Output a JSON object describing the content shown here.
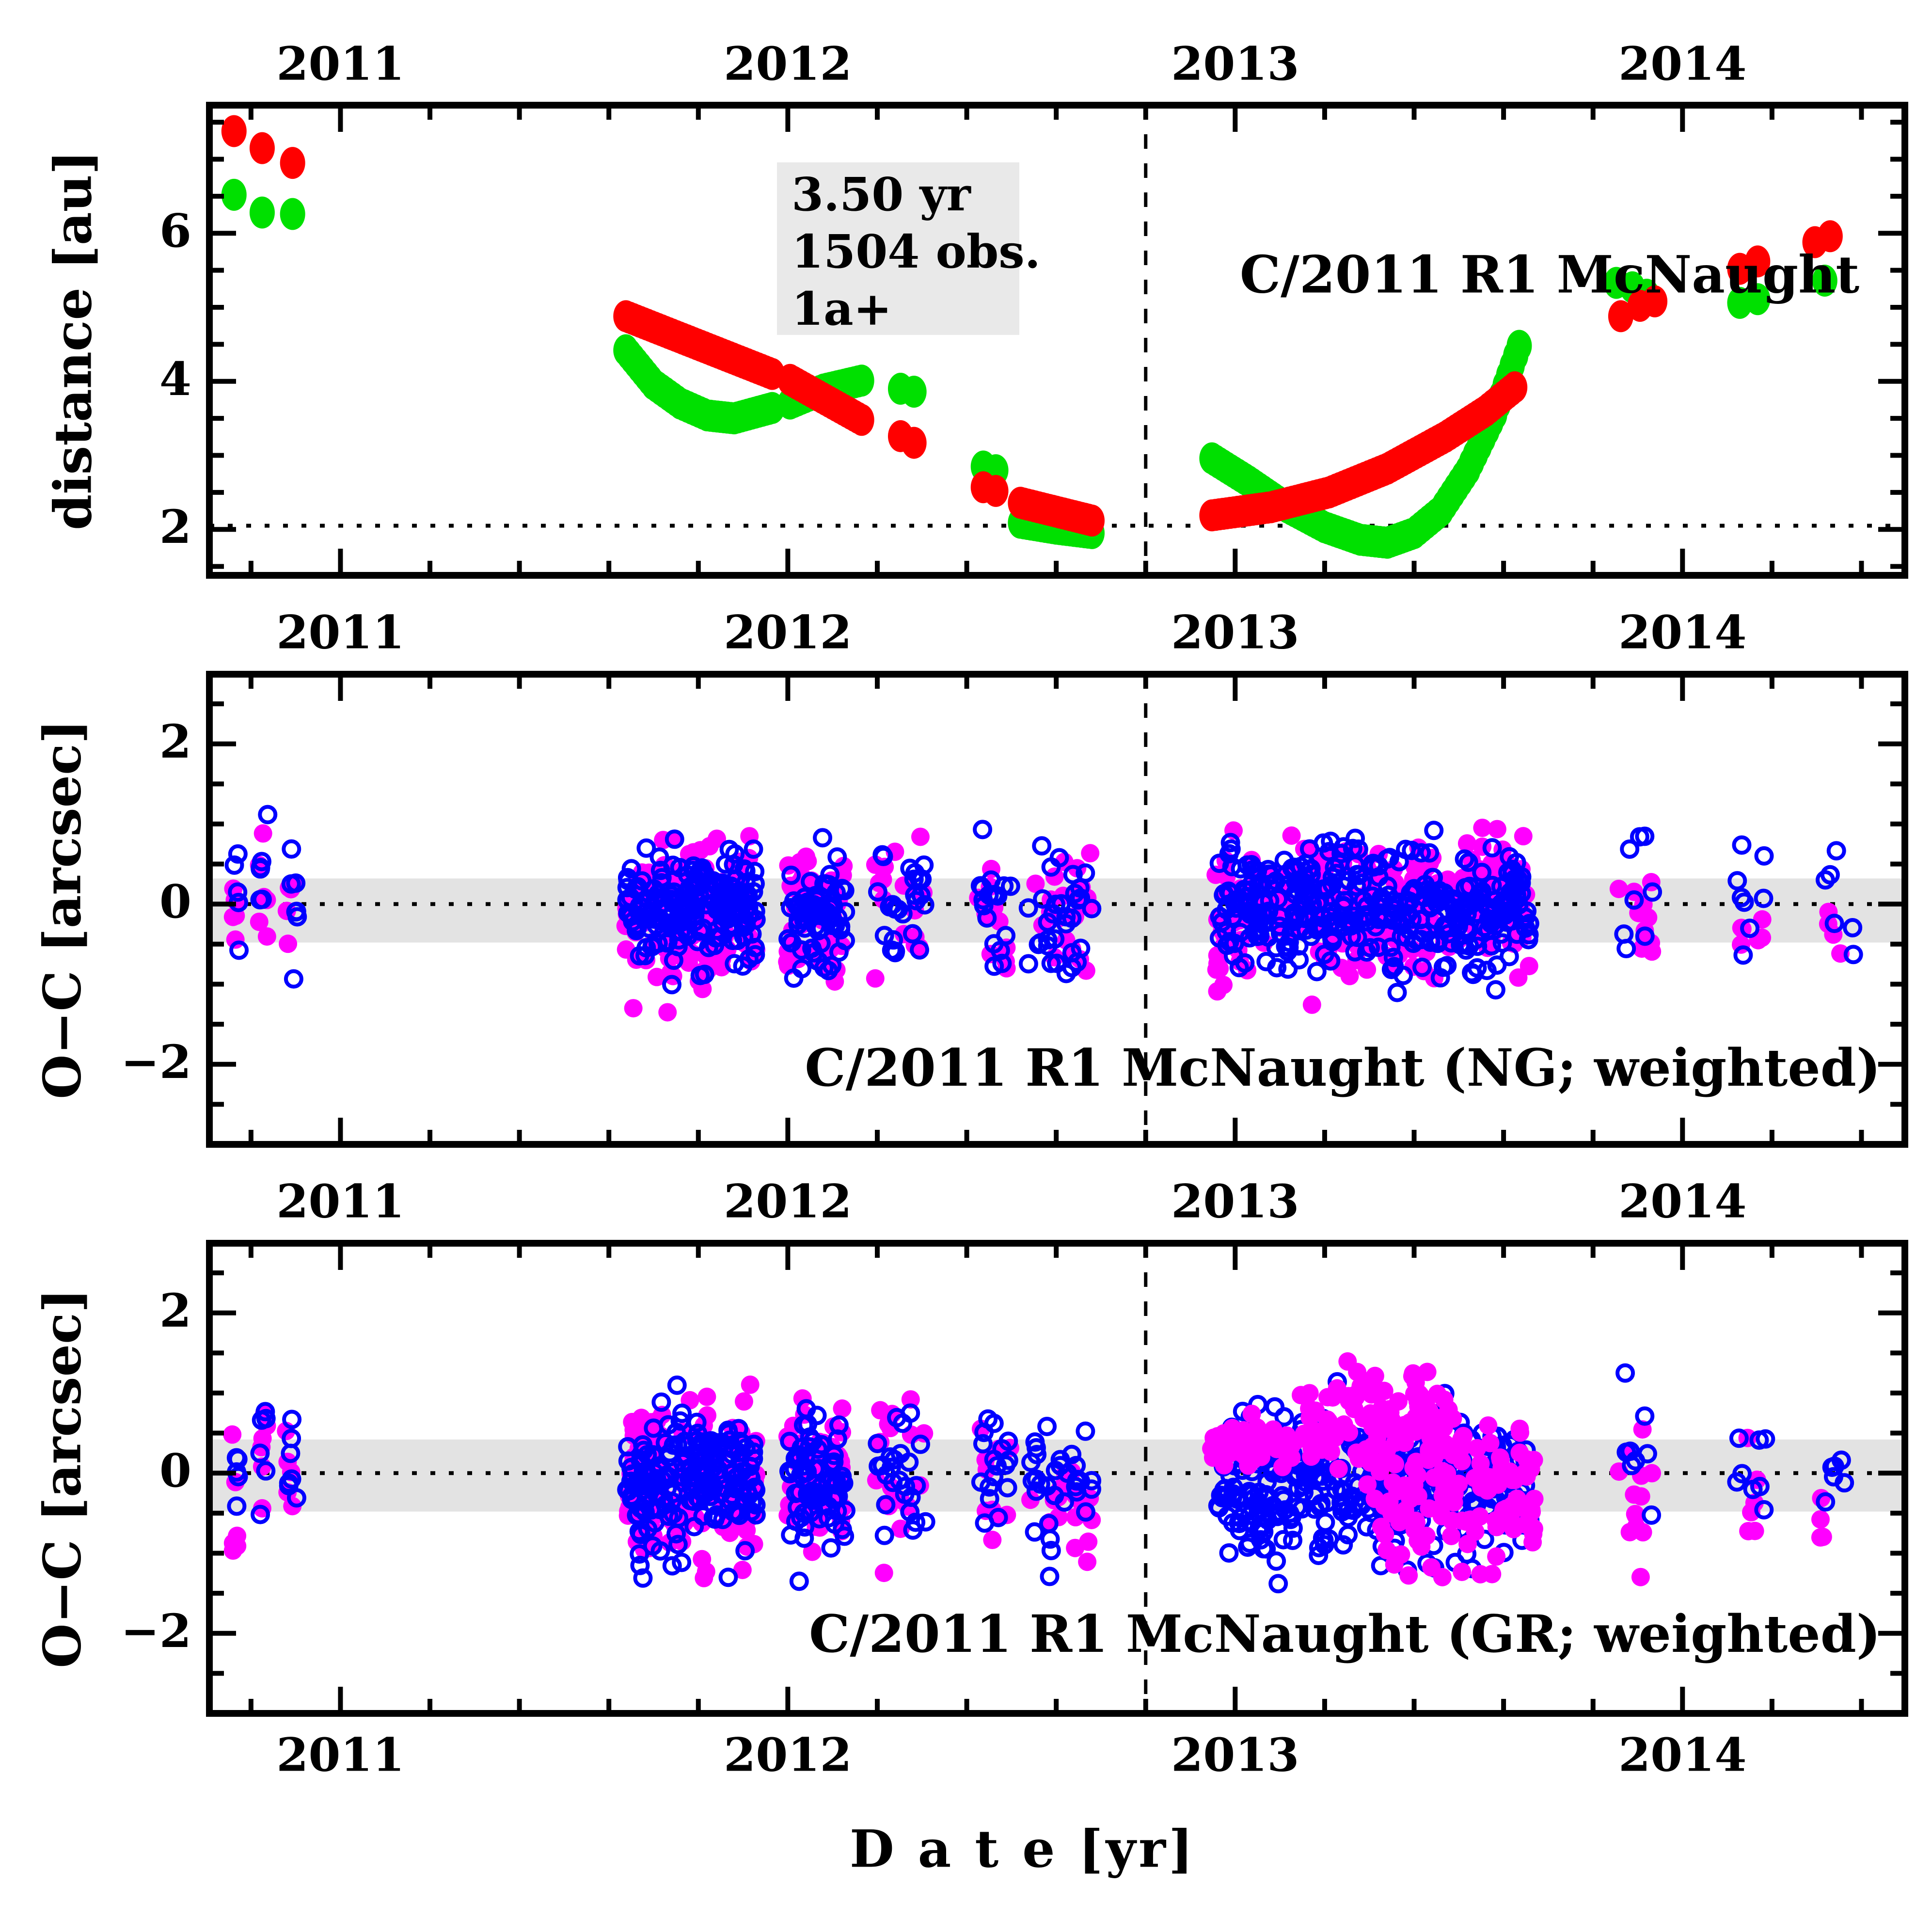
{
  "figure": {
    "background": "#ffffff",
    "frame_color": "#000000",
    "band_color": "#e3e3e3",
    "stats_box_bg": "#e9e9e9",
    "colors": {
      "red_series": "#ff0000",
      "green_series": "#00e000",
      "magenta_filled": "#ff00ff",
      "blue_open": "#0000ff"
    }
  },
  "chart_data": {
    "type": "scatter",
    "x": {
      "title": "D a t e [yr]",
      "range": [
        2010.707,
        2014.497
      ],
      "major_ticks": [
        2011,
        2012,
        2013,
        2014
      ],
      "tick_labels": [
        "2011",
        "2012",
        "2013",
        "2014"
      ],
      "minor_step": 0.2,
      "vline": 2012.8
    },
    "panels": {
      "distance": {
        "ylabel": "distance [au]",
        "title": "C/2011 R1 McNaught",
        "stats_box": {
          "line1": "3.50 yr",
          "line2": "1504 obs.",
          "line3": "1a+"
        },
        "yrange": [
          1.38,
          7.73
        ],
        "ytick_values": [
          2,
          4,
          6
        ],
        "ytick_labels": [
          "2",
          "4",
          "6"
        ],
        "minor_step": 0.5,
        "hline": 2.05,
        "series": [
          {
            "name": "green-curve",
            "color": "#00e000",
            "segments": [
              {
                "mode": "dots",
                "pts": [
                  [
                    2010.762,
                    6.52
                  ],
                  [
                    2010.825,
                    6.28
                  ],
                  [
                    2010.893,
                    6.26
                  ]
                ]
              },
              {
                "mode": "train",
                "step": 0.008,
                "pts": [
                  [
                    2011.638,
                    4.42
                  ],
                  [
                    2011.7,
                    3.96
                  ],
                  [
                    2011.76,
                    3.7
                  ],
                  [
                    2011.82,
                    3.54
                  ],
                  [
                    2011.88,
                    3.5
                  ],
                  [
                    2011.965,
                    3.64
                  ]
                ]
              },
              {
                "mode": "train",
                "step": 0.008,
                "pts": [
                  [
                    2012.005,
                    3.7
                  ],
                  [
                    2012.08,
                    3.89
                  ],
                  [
                    2012.165,
                    4.01
                  ]
                ]
              },
              {
                "mode": "dots",
                "pts": [
                  [
                    2012.252,
                    3.9
                  ],
                  [
                    2012.282,
                    3.86
                  ]
                ]
              },
              {
                "mode": "dots",
                "pts": [
                  [
                    2012.437,
                    2.85
                  ],
                  [
                    2012.465,
                    2.8
                  ]
                ]
              },
              {
                "mode": "train",
                "step": 0.008,
                "pts": [
                  [
                    2012.52,
                    2.09
                  ],
                  [
                    2012.6,
                    2.01
                  ],
                  [
                    2012.68,
                    1.95
                  ]
                ]
              },
              {
                "mode": "train",
                "step": 0.008,
                "pts": [
                  [
                    2012.948,
                    2.96
                  ],
                  [
                    2013.03,
                    2.65
                  ],
                  [
                    2013.11,
                    2.32
                  ],
                  [
                    2013.2,
                    2.03
                  ],
                  [
                    2013.28,
                    1.86
                  ],
                  [
                    2013.34,
                    1.82
                  ],
                  [
                    2013.4,
                    1.95
                  ],
                  [
                    2013.46,
                    2.25
                  ],
                  [
                    2013.52,
                    2.8
                  ],
                  [
                    2013.58,
                    3.55
                  ],
                  [
                    2013.635,
                    4.48
                  ]
                ]
              },
              {
                "mode": "dots",
                "pts": [
                  [
                    2013.852,
                    5.33
                  ],
                  [
                    2013.888,
                    5.27
                  ],
                  [
                    2013.92,
                    5.17
                  ]
                ]
              },
              {
                "mode": "dots",
                "pts": [
                  [
                    2014.128,
                    5.06
                  ],
                  [
                    2014.168,
                    5.11
                  ]
                ]
              },
              {
                "mode": "dots",
                "pts": [
                  [
                    2014.318,
                    5.36
                  ]
                ]
              }
            ]
          },
          {
            "name": "red-curve",
            "color": "#ff0000",
            "segments": [
              {
                "mode": "dots",
                "pts": [
                  [
                    2010.762,
                    7.38
                  ],
                  [
                    2010.825,
                    7.15
                  ],
                  [
                    2010.893,
                    6.95
                  ]
                ]
              },
              {
                "mode": "train",
                "step": 0.008,
                "pts": [
                  [
                    2011.638,
                    4.88
                  ],
                  [
                    2011.965,
                    4.1
                  ]
                ]
              },
              {
                "mode": "train",
                "step": 0.008,
                "pts": [
                  [
                    2012.005,
                    4.02
                  ],
                  [
                    2012.165,
                    3.48
                  ]
                ]
              },
              {
                "mode": "dots",
                "pts": [
                  [
                    2012.252,
                    3.26
                  ],
                  [
                    2012.282,
                    3.17
                  ]
                ]
              },
              {
                "mode": "dots",
                "pts": [
                  [
                    2012.437,
                    2.57
                  ],
                  [
                    2012.465,
                    2.52
                  ]
                ]
              },
              {
                "mode": "train",
                "step": 0.008,
                "pts": [
                  [
                    2012.52,
                    2.36
                  ],
                  [
                    2012.68,
                    2.12
                  ]
                ]
              },
              {
                "mode": "train",
                "step": 0.008,
                "pts": [
                  [
                    2012.948,
                    2.19
                  ],
                  [
                    2013.08,
                    2.3
                  ],
                  [
                    2013.21,
                    2.5
                  ],
                  [
                    2013.34,
                    2.82
                  ],
                  [
                    2013.47,
                    3.25
                  ],
                  [
                    2013.56,
                    3.6
                  ],
                  [
                    2013.625,
                    3.92
                  ]
                ]
              },
              {
                "mode": "dots",
                "pts": [
                  [
                    2013.862,
                    4.88
                  ],
                  [
                    2013.905,
                    5.02
                  ],
                  [
                    2013.938,
                    5.08
                  ]
                ]
              },
              {
                "mode": "dots",
                "pts": [
                  [
                    2014.128,
                    5.52
                  ],
                  [
                    2014.168,
                    5.62
                  ]
                ]
              },
              {
                "mode": "dots",
                "pts": [
                  [
                    2014.296,
                    5.88
                  ],
                  [
                    2014.33,
                    5.96
                  ]
                ]
              }
            ]
          }
        ]
      },
      "ng": {
        "label": "C/2011 R1 McNaught (NG; weighted)",
        "ylabel": "O−C [arcsec]",
        "yrange": [
          -3.0,
          2.87
        ],
        "ytick_values": [
          -2,
          0,
          2
        ],
        "ytick_labels": [
          "−2",
          "0",
          "2"
        ],
        "minor_step": 0.5,
        "hline": 0,
        "band": [
          -0.48,
          0.32
        ],
        "seed": 20117,
        "marker_colors": {
          "filled": "#ff00ff",
          "open": "#0000ff"
        },
        "clusters": [
          {
            "c": "m",
            "x0": 2010.757,
            "x1": 2010.772,
            "n": 6,
            "mu": -0.25,
            "sig": 0.42
          },
          {
            "c": "b",
            "x0": 2010.758,
            "x1": 2010.775,
            "n": 5,
            "mu": 0.05,
            "sig": 0.3
          },
          {
            "c": "m",
            "x0": 2010.818,
            "x1": 2010.836,
            "n": 6,
            "mu": 0.32,
            "sig": 0.3
          },
          {
            "c": "b",
            "x0": 2010.82,
            "x1": 2010.838,
            "n": 6,
            "mu": 0.28,
            "sig": 0.38
          },
          {
            "c": "m",
            "x0": 2010.878,
            "x1": 2010.896,
            "n": 5,
            "mu": 0.05,
            "sig": 0.28
          },
          {
            "c": "b",
            "x0": 2010.882,
            "x1": 2010.908,
            "n": 7,
            "mu": -0.02,
            "sig": 0.4
          },
          {
            "c": "m",
            "x0": 2011.637,
            "x1": 2011.93,
            "n": 145,
            "mu": -0.1,
            "sig": 0.45
          },
          {
            "c": "b",
            "x0": 2011.64,
            "x1": 2011.93,
            "n": 190,
            "mu": -0.03,
            "sig": 0.36
          },
          {
            "c": "m",
            "x0": 2011.995,
            "x1": 2012.125,
            "n": 55,
            "mu": -0.12,
            "sig": 0.42
          },
          {
            "c": "b",
            "x0": 2012.0,
            "x1": 2012.13,
            "n": 72,
            "mu": -0.12,
            "sig": 0.36
          },
          {
            "c": "m",
            "x0": 2012.195,
            "x1": 2012.31,
            "n": 16,
            "mu": 0.05,
            "sig": 0.45
          },
          {
            "c": "b",
            "x0": 2012.2,
            "x1": 2012.31,
            "n": 25,
            "mu": -0.12,
            "sig": 0.38
          },
          {
            "c": "m",
            "x0": 2012.425,
            "x1": 2012.5,
            "n": 11,
            "mu": -0.15,
            "sig": 0.4
          },
          {
            "c": "b",
            "x0": 2012.43,
            "x1": 2012.5,
            "n": 17,
            "mu": 0.05,
            "sig": 0.38
          },
          {
            "c": "m",
            "x0": 2012.52,
            "x1": 2012.68,
            "n": 20,
            "mu": -0.1,
            "sig": 0.4
          },
          {
            "c": "b",
            "x0": 2012.53,
            "x1": 2012.68,
            "n": 32,
            "mu": -0.08,
            "sig": 0.36
          },
          {
            "c": "m",
            "x0": 2012.945,
            "x1": 2013.66,
            "n": 250,
            "mu": -0.05,
            "sig": 0.44
          },
          {
            "c": "b",
            "x0": 2012.96,
            "x1": 2013.66,
            "n": 360,
            "mu": -0.04,
            "sig": 0.37
          },
          {
            "c": "m",
            "x0": 2013.857,
            "x1": 2013.94,
            "n": 13,
            "mu": -0.08,
            "sig": 0.5
          },
          {
            "c": "b",
            "x0": 2013.862,
            "x1": 2013.94,
            "n": 8,
            "mu": 0.25,
            "sig": 0.4
          },
          {
            "c": "m",
            "x0": 2014.115,
            "x1": 2014.185,
            "n": 6,
            "mu": -0.3,
            "sig": 0.28
          },
          {
            "c": "b",
            "x0": 2014.12,
            "x1": 2014.19,
            "n": 8,
            "mu": -0.02,
            "sig": 0.35
          },
          {
            "c": "m",
            "x0": 2014.3,
            "x1": 2014.355,
            "n": 4,
            "mu": -0.12,
            "sig": 0.3
          },
          {
            "c": "b",
            "x0": 2014.315,
            "x1": 2014.385,
            "n": 6,
            "mu": 0.02,
            "sig": 0.4
          }
        ]
      },
      "gr": {
        "label": "C/2011 R1 McNaught (GR; weighted)",
        "ylabel": "O−C [arcsec]",
        "yrange": [
          -3.0,
          2.87
        ],
        "ytick_values": [
          -2,
          0,
          2
        ],
        "ytick_labels": [
          "−2",
          "0",
          "2"
        ],
        "minor_step": 0.5,
        "hline": 0,
        "band": [
          -0.48,
          0.42
        ],
        "seed": 20118,
        "marker_colors": {
          "filled": "#ff00ff",
          "open": "#0000ff"
        },
        "clusters": [
          {
            "c": "m",
            "x0": 2010.757,
            "x1": 2010.772,
            "n": 6,
            "mu": -0.35,
            "sig": 0.45
          },
          {
            "c": "b",
            "x0": 2010.758,
            "x1": 2010.775,
            "n": 5,
            "mu": 0.1,
            "sig": 0.32
          },
          {
            "c": "m",
            "x0": 2010.818,
            "x1": 2010.836,
            "n": 6,
            "mu": 0.3,
            "sig": 0.32
          },
          {
            "c": "b",
            "x0": 2010.82,
            "x1": 2010.838,
            "n": 6,
            "mu": 0.3,
            "sig": 0.4
          },
          {
            "c": "m",
            "x0": 2010.878,
            "x1": 2010.896,
            "n": 5,
            "mu": 0.05,
            "sig": 0.3
          },
          {
            "c": "b",
            "x0": 2010.882,
            "x1": 2010.908,
            "n": 7,
            "mu": -0.05,
            "sig": 0.42
          },
          {
            "c": "m",
            "x0": 2011.637,
            "x1": 2011.93,
            "n": 145,
            "mu": -0.12,
            "sig": 0.5
          },
          {
            "c": "b",
            "x0": 2011.64,
            "x1": 2011.93,
            "n": 190,
            "mu": -0.05,
            "sig": 0.42
          },
          {
            "c": "m",
            "x0": 2011.995,
            "x1": 2012.125,
            "n": 55,
            "mu": -0.18,
            "sig": 0.48
          },
          {
            "c": "b",
            "x0": 2012.0,
            "x1": 2012.13,
            "n": 72,
            "mu": -0.15,
            "sig": 0.4
          },
          {
            "c": "m",
            "x0": 2012.195,
            "x1": 2012.31,
            "n": 16,
            "mu": 0.05,
            "sig": 0.5
          },
          {
            "c": "b",
            "x0": 2012.2,
            "x1": 2012.31,
            "n": 25,
            "mu": -0.1,
            "sig": 0.42
          },
          {
            "c": "m",
            "x0": 2012.425,
            "x1": 2012.5,
            "n": 11,
            "mu": -0.2,
            "sig": 0.42
          },
          {
            "c": "b",
            "x0": 2012.43,
            "x1": 2012.5,
            "n": 17,
            "mu": 0.1,
            "sig": 0.4
          },
          {
            "c": "m",
            "x0": 2012.52,
            "x1": 2012.68,
            "n": 20,
            "mu": -0.25,
            "sig": 0.38
          },
          {
            "c": "b",
            "x0": 2012.53,
            "x1": 2012.68,
            "n": 32,
            "mu": -0.15,
            "sig": 0.38
          },
          {
            "c": "b",
            "x0": 2012.96,
            "x1": 2013.66,
            "n": 370,
            "mu": -0.12,
            "sig": 0.42
          },
          {
            "c": "m",
            "x0": 2012.945,
            "x1": 2013.13,
            "n": 60,
            "mu": 0.35,
            "sig": 0.13
          },
          {
            "c": "m",
            "x0": 2013.13,
            "x1": 2013.48,
            "n": 105,
            "mu": 0.62,
            "sig": 0.3
          },
          {
            "c": "m",
            "x0": 2013.3,
            "x1": 2013.67,
            "n": 120,
            "mu": -0.25,
            "sig": 0.48
          },
          {
            "c": "m",
            "x0": 2013.857,
            "x1": 2013.94,
            "n": 13,
            "mu": -0.1,
            "sig": 0.55
          },
          {
            "c": "b",
            "x0": 2013.862,
            "x1": 2013.94,
            "n": 8,
            "mu": 0.3,
            "sig": 0.45
          },
          {
            "c": "m",
            "x0": 2014.115,
            "x1": 2014.185,
            "n": 6,
            "mu": -0.25,
            "sig": 0.35
          },
          {
            "c": "b",
            "x0": 2014.12,
            "x1": 2014.19,
            "n": 8,
            "mu": 0.0,
            "sig": 0.4
          },
          {
            "c": "m",
            "x0": 2014.3,
            "x1": 2014.355,
            "n": 4,
            "mu": -0.3,
            "sig": 0.35
          },
          {
            "c": "b",
            "x0": 2014.315,
            "x1": 2014.385,
            "n": 6,
            "mu": 0.05,
            "sig": 0.45
          }
        ]
      }
    }
  }
}
